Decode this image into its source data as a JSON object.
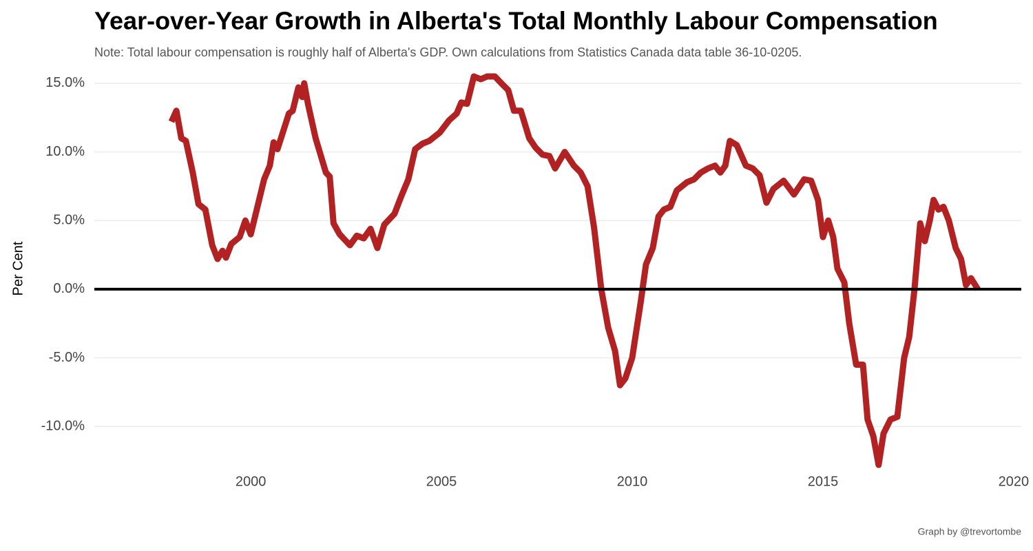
{
  "chart_data": {
    "type": "line",
    "title": "Year-over-Year Growth in Alberta's Total Monthly Labour Compensation",
    "subtitle": "Note: Total labour compensation is roughly half of Alberta's GDP. Own calculations from Statistics Canada data table 36-10-0205.",
    "y_label": "Per Cent",
    "caption": "Graph by @trevortombe",
    "x": [
      1997.92,
      1998.05,
      1998.18,
      1998.3,
      1998.48,
      1998.63,
      1998.81,
      1998.99,
      1999.13,
      1999.26,
      1999.35,
      1999.49,
      1999.71,
      1999.86,
      2000.0,
      2000.35,
      2000.5,
      2000.6,
      2000.7,
      2000.85,
      2001.0,
      2001.1,
      2001.25,
      2001.35,
      2001.4,
      2001.5,
      2001.7,
      2001.97,
      2002.07,
      2002.17,
      2002.33,
      2002.6,
      2002.78,
      2002.96,
      2003.14,
      2003.32,
      2003.5,
      2003.77,
      2003.95,
      2004.13,
      2004.31,
      2004.5,
      2004.68,
      2004.95,
      2005.2,
      2005.4,
      2005.52,
      2005.67,
      2005.85,
      2006.03,
      2006.2,
      2006.4,
      2006.57,
      2006.75,
      2006.9,
      2007.08,
      2007.3,
      2007.47,
      2007.65,
      2007.83,
      2007.98,
      2008.23,
      2008.47,
      2008.65,
      2008.83,
      2009.0,
      2009.19,
      2009.37,
      2009.55,
      2009.68,
      2009.82,
      2010.0,
      2010.22,
      2010.36,
      2010.54,
      2010.69,
      2010.83,
      2011.0,
      2011.17,
      2011.44,
      2011.62,
      2011.8,
      2011.99,
      2012.17,
      2012.31,
      2012.44,
      2012.56,
      2012.74,
      2012.98,
      2013.16,
      2013.34,
      2013.52,
      2013.7,
      2013.97,
      2014.24,
      2014.51,
      2014.69,
      2014.87,
      2015.0,
      2015.14,
      2015.27,
      2015.38,
      2015.56,
      2015.69,
      2015.87,
      2016.05,
      2016.17,
      2016.32,
      2016.46,
      2016.59,
      2016.77,
      2016.95,
      2017.13,
      2017.26,
      2017.4,
      2017.55,
      2017.67,
      2017.8,
      2017.9,
      2018.03,
      2018.16,
      2018.3,
      2018.48,
      2018.62,
      2018.75,
      2018.88,
      2019.06
    ],
    "series": [
      {
        "name": "Growth",
        "color": "#b22222",
        "values": [
          12.2,
          13.0,
          11.0,
          10.8,
          8.5,
          6.2,
          5.8,
          3.2,
          2.2,
          2.8,
          2.3,
          3.3,
          3.8,
          5.0,
          4.0,
          8.0,
          9.0,
          10.7,
          10.2,
          11.5,
          12.8,
          13.0,
          14.7,
          14.0,
          15.0,
          13.5,
          11.0,
          8.5,
          8.2,
          4.8,
          4.0,
          3.2,
          3.9,
          3.7,
          4.4,
          3.0,
          4.7,
          5.5,
          6.8,
          8.0,
          10.2,
          10.6,
          10.8,
          11.4,
          12.3,
          12.8,
          13.6,
          13.5,
          15.5,
          15.3,
          15.5,
          15.5,
          15.0,
          14.5,
          13.0,
          13.0,
          11.0,
          10.3,
          9.8,
          9.7,
          8.8,
          10.0,
          9.0,
          8.5,
          7.5,
          4.5,
          0.0,
          -2.8,
          -4.5,
          -7.0,
          -6.5,
          -5.0,
          -1.0,
          1.8,
          3.0,
          5.3,
          5.8,
          6.0,
          7.2,
          7.8,
          8.0,
          8.5,
          8.8,
          9.0,
          8.5,
          9.0,
          10.8,
          10.5,
          9.0,
          8.8,
          8.3,
          6.3,
          7.3,
          7.9,
          6.9,
          8.0,
          7.9,
          6.5,
          3.8,
          5.0,
          3.8,
          1.5,
          0.5,
          -2.5,
          -5.5,
          -5.5,
          -9.5,
          -10.7,
          -12.8,
          -10.5,
          -9.5,
          -9.3,
          -5.0,
          -3.5,
          0.0,
          4.8,
          3.5,
          5.0,
          6.5,
          5.8,
          6.0,
          5.0,
          3.0,
          2.2,
          0.3,
          0.8,
          0.0
        ]
      }
    ],
    "reference_line": 0,
    "xlim": [
      1995.9,
      2020.2
    ],
    "xticks": [
      2000,
      2005,
      2010,
      2015,
      2020
    ],
    "ylim": [
      -12.8,
      15.9
    ],
    "yticks": [
      {
        "value": -10,
        "label": "-10.0%"
      },
      {
        "value": -5,
        "label": "-5.0%"
      },
      {
        "value": 0,
        "label": "0.0%"
      },
      {
        "value": 5,
        "label": "5.0%"
      },
      {
        "value": 10,
        "label": "10.0%"
      },
      {
        "value": 15,
        "label": "15.0%"
      }
    ],
    "grid": true
  }
}
